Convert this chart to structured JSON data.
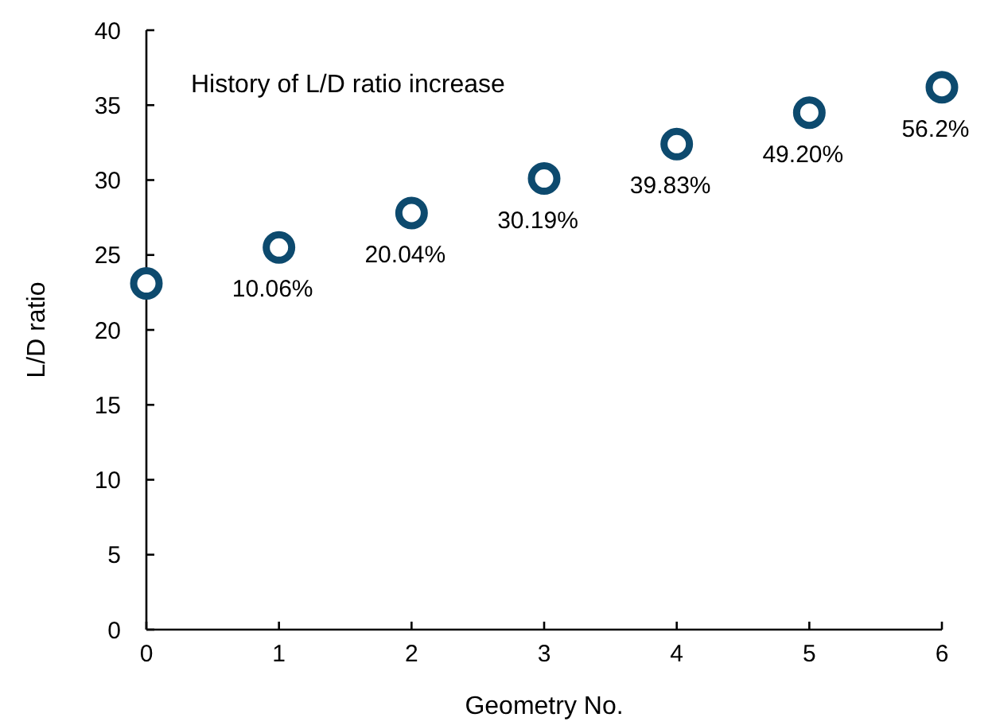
{
  "chart_data": {
    "type": "scatter",
    "title": "History of L/D ratio increase",
    "xlabel": "Geometry No.",
    "ylabel": "L/D ratio",
    "x": [
      0,
      1,
      2,
      3,
      4,
      5,
      6
    ],
    "series": [
      {
        "color": "#0d4a6e",
        "values": [
          23.1,
          25.5,
          27.8,
          30.1,
          32.4,
          34.5,
          36.2
        ]
      }
    ],
    "xlim": [
      0,
      6
    ],
    "xticks": [
      0,
      1,
      2,
      3,
      4,
      5,
      6
    ],
    "ylim": [
      0,
      40
    ],
    "yticks": [
      0,
      5,
      10,
      15,
      20,
      25,
      30,
      35,
      40
    ],
    "marker": "circle",
    "grid": false,
    "annotations": [
      {
        "text": "10.06%",
        "x": 1,
        "y": 25.5
      },
      {
        "text": "20.04%",
        "x": 2,
        "y": 27.8
      },
      {
        "text": "30.19%",
        "x": 3,
        "y": 30.1
      },
      {
        "text": "39.83%",
        "x": 4,
        "y": 32.4
      },
      {
        "text": "49.20%",
        "x": 5,
        "y": 34.5
      },
      {
        "text": "56.2%",
        "x": 6,
        "y": 36.2
      }
    ]
  }
}
